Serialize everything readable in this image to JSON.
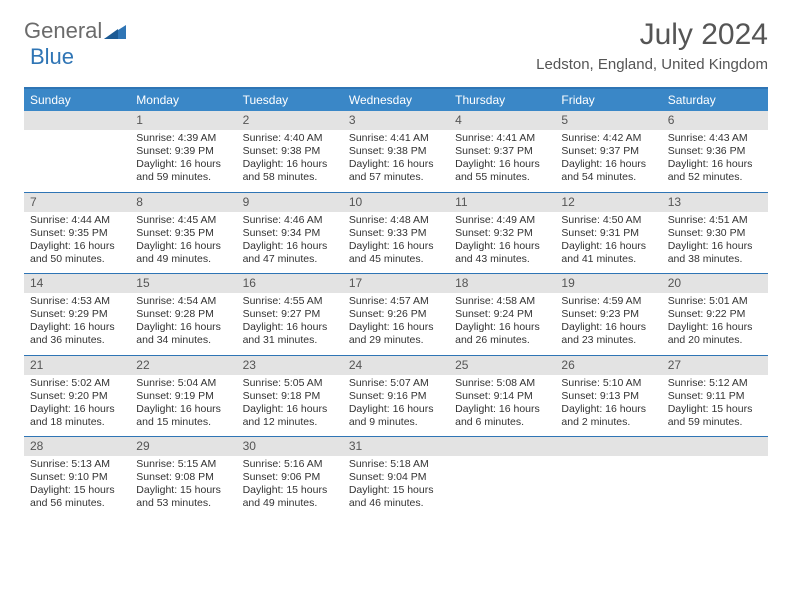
{
  "brand": {
    "part1": "General",
    "part2": "Blue"
  },
  "title": "July 2024",
  "location": "Ledston, England, United Kingdom",
  "colors": {
    "header_bg": "#3a87c7",
    "accent": "#2f75b5",
    "daynum_bg": "#e3e3e3",
    "text": "#333333",
    "muted": "#555555",
    "background": "#ffffff"
  },
  "weekdays": [
    "Sunday",
    "Monday",
    "Tuesday",
    "Wednesday",
    "Thursday",
    "Friday",
    "Saturday"
  ],
  "weeks": [
    [
      null,
      {
        "n": "1",
        "sunrise": "4:39 AM",
        "sunset": "9:39 PM",
        "daylight": "16 hours and 59 minutes."
      },
      {
        "n": "2",
        "sunrise": "4:40 AM",
        "sunset": "9:38 PM",
        "daylight": "16 hours and 58 minutes."
      },
      {
        "n": "3",
        "sunrise": "4:41 AM",
        "sunset": "9:38 PM",
        "daylight": "16 hours and 57 minutes."
      },
      {
        "n": "4",
        "sunrise": "4:41 AM",
        "sunset": "9:37 PM",
        "daylight": "16 hours and 55 minutes."
      },
      {
        "n": "5",
        "sunrise": "4:42 AM",
        "sunset": "9:37 PM",
        "daylight": "16 hours and 54 minutes."
      },
      {
        "n": "6",
        "sunrise": "4:43 AM",
        "sunset": "9:36 PM",
        "daylight": "16 hours and 52 minutes."
      }
    ],
    [
      {
        "n": "7",
        "sunrise": "4:44 AM",
        "sunset": "9:35 PM",
        "daylight": "16 hours and 50 minutes."
      },
      {
        "n": "8",
        "sunrise": "4:45 AM",
        "sunset": "9:35 PM",
        "daylight": "16 hours and 49 minutes."
      },
      {
        "n": "9",
        "sunrise": "4:46 AM",
        "sunset": "9:34 PM",
        "daylight": "16 hours and 47 minutes."
      },
      {
        "n": "10",
        "sunrise": "4:48 AM",
        "sunset": "9:33 PM",
        "daylight": "16 hours and 45 minutes."
      },
      {
        "n": "11",
        "sunrise": "4:49 AM",
        "sunset": "9:32 PM",
        "daylight": "16 hours and 43 minutes."
      },
      {
        "n": "12",
        "sunrise": "4:50 AM",
        "sunset": "9:31 PM",
        "daylight": "16 hours and 41 minutes."
      },
      {
        "n": "13",
        "sunrise": "4:51 AM",
        "sunset": "9:30 PM",
        "daylight": "16 hours and 38 minutes."
      }
    ],
    [
      {
        "n": "14",
        "sunrise": "4:53 AM",
        "sunset": "9:29 PM",
        "daylight": "16 hours and 36 minutes."
      },
      {
        "n": "15",
        "sunrise": "4:54 AM",
        "sunset": "9:28 PM",
        "daylight": "16 hours and 34 minutes."
      },
      {
        "n": "16",
        "sunrise": "4:55 AM",
        "sunset": "9:27 PM",
        "daylight": "16 hours and 31 minutes."
      },
      {
        "n": "17",
        "sunrise": "4:57 AM",
        "sunset": "9:26 PM",
        "daylight": "16 hours and 29 minutes."
      },
      {
        "n": "18",
        "sunrise": "4:58 AM",
        "sunset": "9:24 PM",
        "daylight": "16 hours and 26 minutes."
      },
      {
        "n": "19",
        "sunrise": "4:59 AM",
        "sunset": "9:23 PM",
        "daylight": "16 hours and 23 minutes."
      },
      {
        "n": "20",
        "sunrise": "5:01 AM",
        "sunset": "9:22 PM",
        "daylight": "16 hours and 20 minutes."
      }
    ],
    [
      {
        "n": "21",
        "sunrise": "5:02 AM",
        "sunset": "9:20 PM",
        "daylight": "16 hours and 18 minutes."
      },
      {
        "n": "22",
        "sunrise": "5:04 AM",
        "sunset": "9:19 PM",
        "daylight": "16 hours and 15 minutes."
      },
      {
        "n": "23",
        "sunrise": "5:05 AM",
        "sunset": "9:18 PM",
        "daylight": "16 hours and 12 minutes."
      },
      {
        "n": "24",
        "sunrise": "5:07 AM",
        "sunset": "9:16 PM",
        "daylight": "16 hours and 9 minutes."
      },
      {
        "n": "25",
        "sunrise": "5:08 AM",
        "sunset": "9:14 PM",
        "daylight": "16 hours and 6 minutes."
      },
      {
        "n": "26",
        "sunrise": "5:10 AM",
        "sunset": "9:13 PM",
        "daylight": "16 hours and 2 minutes."
      },
      {
        "n": "27",
        "sunrise": "5:12 AM",
        "sunset": "9:11 PM",
        "daylight": "15 hours and 59 minutes."
      }
    ],
    [
      {
        "n": "28",
        "sunrise": "5:13 AM",
        "sunset": "9:10 PM",
        "daylight": "15 hours and 56 minutes."
      },
      {
        "n": "29",
        "sunrise": "5:15 AM",
        "sunset": "9:08 PM",
        "daylight": "15 hours and 53 minutes."
      },
      {
        "n": "30",
        "sunrise": "5:16 AM",
        "sunset": "9:06 PM",
        "daylight": "15 hours and 49 minutes."
      },
      {
        "n": "31",
        "sunrise": "5:18 AM",
        "sunset": "9:04 PM",
        "daylight": "15 hours and 46 minutes."
      },
      null,
      null,
      null
    ]
  ],
  "labels": {
    "sunrise": "Sunrise:",
    "sunset": "Sunset:",
    "daylight": "Daylight:"
  }
}
